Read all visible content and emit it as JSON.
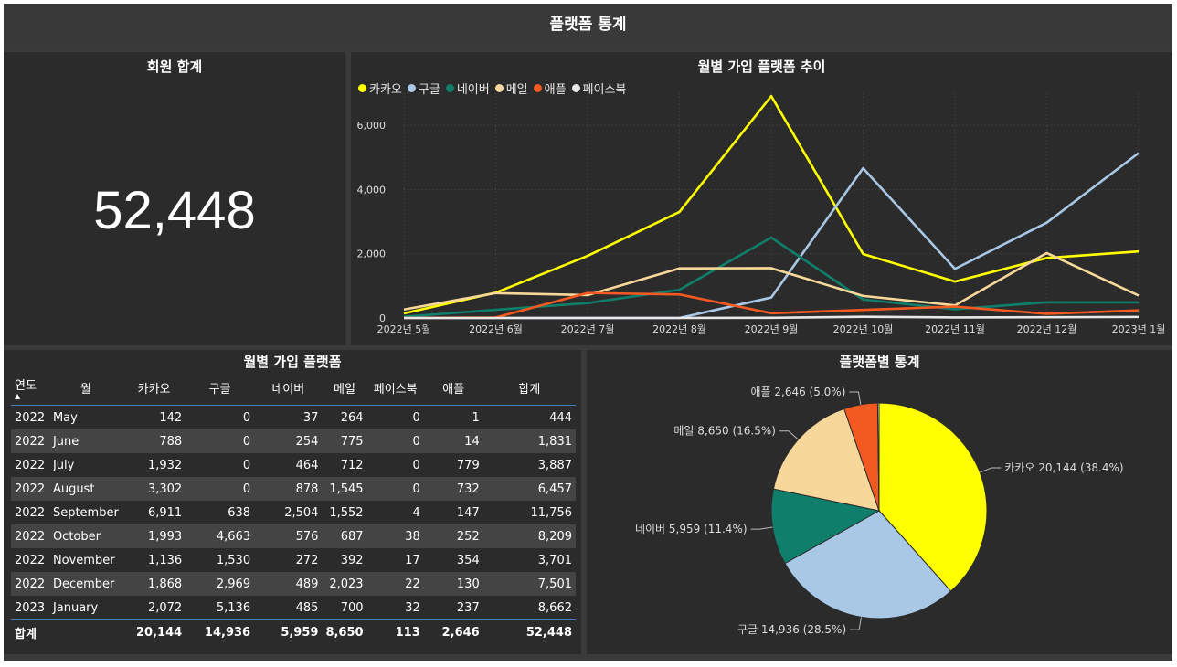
{
  "header": {
    "title": "플랫폼 통계"
  },
  "kpi": {
    "title": "회원 합계",
    "value": "52,448"
  },
  "line_chart": {
    "title": "월별 가입 플랫폼 추이",
    "legend": [
      {
        "name": "카카오",
        "color": "#ffff00"
      },
      {
        "name": "구글",
        "color": "#a9c8e6"
      },
      {
        "name": "네이버",
        "color": "#0f7f6b"
      },
      {
        "name": "메일",
        "color": "#f8d89a"
      },
      {
        "name": "애플",
        "color": "#f25a22"
      },
      {
        "name": "페이스북",
        "color": "#e8e8e8"
      }
    ]
  },
  "table": {
    "title": "월별 가입 플랫폼",
    "columns": [
      "연도",
      "월",
      "카카오",
      "구글",
      "네이버",
      "메일",
      "페이스북",
      "애플",
      "합계"
    ],
    "rows": [
      [
        "2022",
        "May",
        "142",
        "0",
        "37",
        "264",
        "0",
        "1",
        "444"
      ],
      [
        "2022",
        "June",
        "788",
        "0",
        "254",
        "775",
        "0",
        "14",
        "1,831"
      ],
      [
        "2022",
        "July",
        "1,932",
        "0",
        "464",
        "712",
        "0",
        "779",
        "3,887"
      ],
      [
        "2022",
        "August",
        "3,302",
        "0",
        "878",
        "1,545",
        "0",
        "732",
        "6,457"
      ],
      [
        "2022",
        "September",
        "6,911",
        "638",
        "2,504",
        "1,552",
        "4",
        "147",
        "11,756"
      ],
      [
        "2022",
        "October",
        "1,993",
        "4,663",
        "576",
        "687",
        "38",
        "252",
        "8,209"
      ],
      [
        "2022",
        "November",
        "1,136",
        "1,530",
        "272",
        "392",
        "17",
        "354",
        "3,701"
      ],
      [
        "2022",
        "December",
        "1,868",
        "2,969",
        "489",
        "2,023",
        "22",
        "130",
        "7,501"
      ],
      [
        "2023",
        "January",
        "2,072",
        "5,136",
        "485",
        "700",
        "32",
        "237",
        "8,662"
      ]
    ],
    "total": [
      "합계",
      "",
      "20,144",
      "14,936",
      "5,959",
      "8,650",
      "113",
      "2,646",
      "52,448"
    ]
  },
  "pie_chart": {
    "title": "플랫폼별 통계",
    "labels": [
      "카카오 20,144 (38.4%)",
      "구글 14,936 (28.5%)",
      "네이버 5,959 (11.4%)",
      "메일 8,650 (16.5%)",
      "애플 2,646 (5.0%)"
    ]
  },
  "chart_data": [
    {
      "type": "line",
      "title": "월별 가입 플랫폼 추이",
      "x": [
        "2022년 5월",
        "2022년 6월",
        "2022년 7월",
        "2022년 8월",
        "2022년 9월",
        "2022년 10월",
        "2022년 11월",
        "2022년 12월",
        "2023년 1월"
      ],
      "ylim": [
        0,
        7000
      ],
      "yticks": [
        "0",
        "2,000",
        "4,000",
        "6,000"
      ],
      "ytick_values": [
        0,
        2000,
        4000,
        6000
      ],
      "grid": true,
      "legend": "top-left",
      "series": [
        {
          "name": "카카오",
          "color": "#ffff00",
          "values": [
            142,
            788,
            1932,
            3302,
            6911,
            1993,
            1136,
            1868,
            2072
          ]
        },
        {
          "name": "구글",
          "color": "#a9c8e6",
          "values": [
            0,
            0,
            0,
            0,
            638,
            4663,
            1530,
            2969,
            5136
          ]
        },
        {
          "name": "네이버",
          "color": "#0f7f6b",
          "values": [
            37,
            254,
            464,
            878,
            2504,
            576,
            272,
            489,
            485
          ]
        },
        {
          "name": "메일",
          "color": "#f8d89a",
          "values": [
            264,
            775,
            712,
            1545,
            1552,
            687,
            392,
            2023,
            700
          ]
        },
        {
          "name": "애플",
          "color": "#f25a22",
          "values": [
            1,
            14,
            779,
            732,
            147,
            252,
            354,
            130,
            237
          ]
        },
        {
          "name": "페이스북",
          "color": "#e8e8e8",
          "values": [
            0,
            0,
            0,
            0,
            4,
            38,
            17,
            22,
            32
          ]
        }
      ]
    },
    {
      "type": "pie",
      "title": "플랫폼별 통계",
      "slices": [
        {
          "name": "카카오",
          "value": 20144,
          "percent": 38.4,
          "color": "#ffff00"
        },
        {
          "name": "구글",
          "value": 14936,
          "percent": 28.5,
          "color": "#a9c8e6"
        },
        {
          "name": "네이버",
          "value": 5959,
          "percent": 11.4,
          "color": "#0f7f6b"
        },
        {
          "name": "메일",
          "value": 8650,
          "percent": 16.5,
          "color": "#f8d89a"
        },
        {
          "name": "애플",
          "value": 2646,
          "percent": 5.0,
          "color": "#f25a22"
        },
        {
          "name": "페이스북",
          "value": 113,
          "percent": 0.2,
          "color": "#e8e8e8"
        }
      ]
    }
  ]
}
